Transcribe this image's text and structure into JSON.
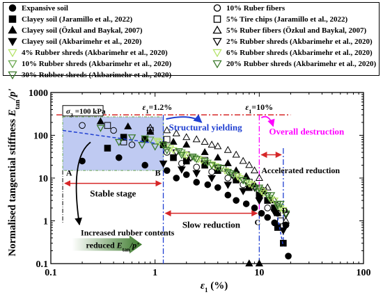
{
  "chart_data": {
    "type": "scatter",
    "xscale": "log",
    "yscale": "log",
    "xlim": [
      0.1,
      100
    ],
    "ylim": [
      0.1,
      1000
    ],
    "x_ticks": [
      "0.1",
      "1",
      "10",
      "100"
    ],
    "y_ticks": [
      "0.1",
      "1",
      "10",
      "100",
      "1000"
    ],
    "xlabel_main": "ε",
    "xlabel_sub": "1",
    "xlabel_unit": " (%)",
    "ylabel_prefix": "Normalised tangential stiffness ",
    "ylabel_var": "E",
    "ylabel_sub": "tan",
    "ylabel_suffix": "/p'",
    "grid": false,
    "legend_position": "top",
    "colors": {
      "dashdot": "#d62728",
      "blue": "#1f3fd1",
      "magenta": "#ff00ff",
      "shade": "#aab8ee",
      "green_dark": "#3c7a2c",
      "green_mid": "#6aa84f",
      "green_light": "#b5e36a"
    },
    "series": [
      {
        "name": "Expansive soil",
        "marker": "circle",
        "fill": "#000000",
        "stroke": "#000000",
        "points": [
          [
            0.2,
            25
          ],
          [
            0.45,
            30
          ],
          [
            0.8,
            20
          ],
          [
            1.3,
            15
          ],
          [
            1.6,
            10
          ],
          [
            2.0,
            12
          ],
          [
            2.5,
            8
          ],
          [
            3.2,
            7
          ],
          [
            4.0,
            6
          ],
          [
            5.0,
            4
          ],
          [
            6.0,
            3
          ],
          [
            7.5,
            2.5
          ],
          [
            9.0,
            2
          ],
          [
            10.5,
            1.5
          ],
          [
            12,
            1.2
          ],
          [
            14,
            0.9
          ],
          [
            18,
            0.8
          ],
          [
            19,
            0.15
          ]
        ]
      },
      {
        "name": "Clayey soil (Jaramillo et al., 2022)",
        "marker": "square",
        "fill": "#000000",
        "stroke": "#000000",
        "points": [
          [
            0.35,
            50
          ],
          [
            0.5,
            90
          ],
          [
            0.8,
            80
          ],
          [
            1.2,
            60
          ],
          [
            1.5,
            30
          ],
          [
            2.0,
            25
          ],
          [
            3.0,
            20
          ],
          [
            4.0,
            15
          ],
          [
            6.0,
            9
          ],
          [
            8,
            6
          ],
          [
            10,
            4
          ],
          [
            12,
            3
          ],
          [
            14,
            2
          ],
          [
            15,
            0.7
          ],
          [
            17,
            0.3
          ]
        ]
      },
      {
        "name": "Clayey soil (Özkul and Baykal, 2007)",
        "marker": "triangle-up",
        "fill": "#000000",
        "stroke": "#000000",
        "points": [
          [
            0.3,
            210
          ],
          [
            0.55,
            160
          ],
          [
            0.9,
            120
          ],
          [
            1.5,
            70
          ],
          [
            2.0,
            60
          ],
          [
            3.0,
            40
          ],
          [
            4.0,
            30
          ],
          [
            5.0,
            22
          ],
          [
            6.0,
            15
          ],
          [
            7.5,
            11
          ],
          [
            9.0,
            7
          ],
          [
            11,
            5
          ],
          [
            13,
            3
          ],
          [
            15,
            1.5
          ],
          [
            8,
            0.1
          ],
          [
            10,
            0.1
          ]
        ]
      },
      {
        "name": "Clayey soil (Akbarimehr et al., 2020)",
        "marker": "triangle-down",
        "fill": "#000000",
        "stroke": "#000000",
        "points": [
          [
            1.2,
            22
          ],
          [
            1.8,
            16
          ],
          [
            2.5,
            13
          ],
          [
            3.5,
            10
          ],
          [
            5,
            7
          ],
          [
            7,
            5
          ],
          [
            10,
            3
          ],
          [
            14,
            1.6
          ],
          [
            17,
            0.6
          ]
        ]
      },
      {
        "name": "10% Ruber fibers",
        "marker": "circle",
        "fill": "none",
        "stroke": "#000000",
        "points": [
          [
            0.2,
            170
          ],
          [
            0.4,
            130
          ],
          [
            0.6,
            60
          ],
          [
            1.3,
            40
          ],
          [
            1.8,
            22
          ],
          [
            2.5,
            18
          ],
          [
            3.5,
            14
          ],
          [
            5,
            10
          ],
          [
            7,
            7
          ],
          [
            10,
            5
          ],
          [
            12,
            2
          ],
          [
            15,
            1.5
          ],
          [
            18,
            0.8
          ]
        ]
      },
      {
        "name": "5% Tire chips (Jaramillo et al., 2022)",
        "marker": "square",
        "fill": "none",
        "stroke": "#000000",
        "points": [
          [
            0.35,
            170
          ],
          [
            0.5,
            70
          ],
          [
            0.9,
            130
          ],
          [
            1.3,
            80
          ],
          [
            2.0,
            35
          ],
          [
            3.0,
            26
          ],
          [
            4.5,
            17
          ],
          [
            6,
            12
          ],
          [
            8,
            8
          ],
          [
            11,
            5
          ],
          [
            14,
            2
          ],
          [
            16,
            1
          ]
        ]
      },
      {
        "name": "5% Ruber fibers (Özkul and Baykal, 2007)",
        "marker": "triangle-up",
        "fill": "none",
        "stroke": "#000000",
        "points": [
          [
            0.9,
            150
          ],
          [
            1.3,
            130
          ],
          [
            1.6,
            110
          ],
          [
            2.0,
            90
          ],
          [
            2.5,
            80
          ],
          [
            3.0,
            70
          ],
          [
            3.5,
            60
          ],
          [
            4.0,
            55
          ],
          [
            5,
            45
          ],
          [
            6,
            35
          ],
          [
            7,
            25
          ],
          [
            8,
            20
          ],
          [
            9,
            15
          ],
          [
            10,
            10
          ],
          [
            12,
            6
          ],
          [
            14,
            3
          ],
          [
            16,
            2
          ],
          [
            18,
            1
          ]
        ]
      },
      {
        "name": "2% Rubber shreds (Akbarimehr et al., 2020)",
        "marker": "triangle-down",
        "fill": "none",
        "stroke": "#000000",
        "points": [
          [
            1.2,
            60
          ],
          [
            1.6,
            40
          ],
          [
            2.2,
            30
          ],
          [
            3,
            22
          ],
          [
            4,
            17
          ],
          [
            5.5,
            12
          ],
          [
            7,
            9
          ],
          [
            9,
            6
          ],
          [
            12,
            4
          ],
          [
            15,
            2.5
          ],
          [
            18,
            1.4
          ]
        ]
      },
      {
        "name": "4% Rubber shreds (Akbarimehr et al., 2020)",
        "marker": "triangle-down",
        "fill": "none",
        "stroke": "#b5e36a",
        "points": [
          [
            1.1,
            70
          ],
          [
            1.5,
            45
          ],
          [
            2.0,
            34
          ],
          [
            2.8,
            26
          ],
          [
            3.8,
            19
          ],
          [
            5.0,
            14
          ],
          [
            6.5,
            10
          ],
          [
            8.5,
            7
          ],
          [
            11,
            4.5
          ],
          [
            14,
            3
          ],
          [
            17,
            1.8
          ]
        ]
      },
      {
        "name": "6% Rubber shreds (Akbarimehr et al., 2020)",
        "marker": "triangle-down",
        "fill": "none",
        "stroke": "#b5e36a",
        "points": [
          [
            1.05,
            75
          ],
          [
            1.4,
            50
          ],
          [
            1.9,
            36
          ],
          [
            2.6,
            28
          ],
          [
            3.5,
            21
          ],
          [
            4.7,
            15
          ],
          [
            6.2,
            11
          ],
          [
            8,
            7.5
          ],
          [
            10.5,
            5
          ],
          [
            13,
            3.2
          ],
          [
            16,
            2
          ]
        ]
      },
      {
        "name": "10% Rubber shreds (Akbarimehr et al., 2020)",
        "marker": "triangle-down",
        "fill": "none",
        "stroke": "#6aa84f",
        "points": [
          [
            0.9,
            80
          ],
          [
            1.3,
            55
          ],
          [
            1.8,
            40
          ],
          [
            2.4,
            30
          ],
          [
            3.2,
            23
          ],
          [
            4.3,
            17
          ],
          [
            5.7,
            12
          ],
          [
            7.5,
            8
          ],
          [
            10,
            5.5
          ],
          [
            12.5,
            3.5
          ],
          [
            15,
            2.2
          ]
        ]
      },
      {
        "name": "20% Rubber shreds (Akbarimehr et al., 2020)",
        "marker": "triangle-down",
        "fill": "none",
        "stroke": "#3c7a2c",
        "points": [
          [
            0.8,
            85
          ],
          [
            1.2,
            60
          ],
          [
            1.7,
            43
          ],
          [
            2.3,
            32
          ],
          [
            3.0,
            25
          ],
          [
            4.0,
            18
          ],
          [
            5.3,
            13
          ],
          [
            7.0,
            9
          ],
          [
            9.2,
            6
          ],
          [
            12,
            4
          ],
          [
            15,
            2.5
          ]
        ]
      },
      {
        "name": "30% Rubber shreds (Akbarimehr et al., 2020)",
        "marker": "triangle-down",
        "fill": "none",
        "stroke": "#3c7a2c",
        "points": [
          [
            0.3,
            150
          ],
          [
            0.45,
            70
          ],
          [
            0.6,
            90
          ],
          [
            0.75,
            60
          ],
          [
            1.0,
            55
          ],
          [
            1.3,
            45
          ],
          [
            1.8,
            35
          ],
          [
            2.5,
            28
          ],
          [
            3.5,
            20
          ],
          [
            5,
            14
          ],
          [
            7,
            9
          ],
          [
            10,
            6
          ],
          [
            13,
            4
          ],
          [
            16,
            2.5
          ],
          [
            18,
            1.5
          ]
        ]
      }
    ],
    "annotations": {
      "sigma_label": "σ",
      "sigma_sub": "3",
      "sigma_value": " =100 kPa",
      "strain_12": "ε",
      "strain_12_sub": "1",
      "strain_12_val": "=1.2%",
      "strain_10": "ε",
      "strain_10_sub": "1",
      "strain_10_val": "=10%",
      "structural_yielding": "Structural yielding",
      "overall_destruction": "Overall destruction",
      "point_a": "A",
      "point_b": "B",
      "point_c": "C",
      "point_d": "D",
      "stable_stage": "Stable stage",
      "slow_reduction": "Slow reduction",
      "accelerated_reduction": "Accelerated reduction",
      "increased_rubber": "Increased rubber contents",
      "reduced_prefix": "reduced ",
      "reduced_var": "E",
      "reduced_sub": "tan",
      "reduced_suffix": "/p'"
    }
  }
}
